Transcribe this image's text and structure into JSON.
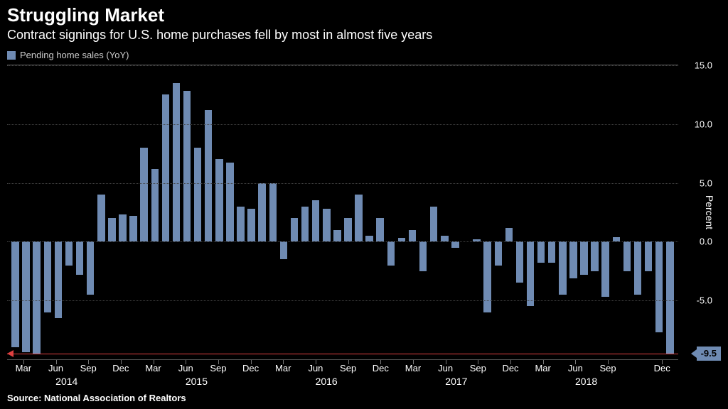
{
  "header": {
    "title": "Struggling Market",
    "subtitle": "Contract signings for U.S. home purchases fell by most in almost five years"
  },
  "legend": {
    "series_label": "Pending home sales (YoY)"
  },
  "chart": {
    "type": "bar",
    "background_color": "#000000",
    "bar_color": "#6f8bb3",
    "grid_color": "#444444",
    "axis_color": "#555555",
    "text_color": "#ffffff",
    "reference_line_color": "#e04040",
    "callout_bg": "#6f8bb3",
    "y_axis_title": "Percent",
    "ylim": [
      -10,
      15
    ],
    "yticks": [
      15.0,
      10.0,
      5.0,
      0.0,
      -5.0
    ],
    "ytick_labels": [
      "15.0",
      "10.0",
      "5.0",
      "0.0",
      "-5.0"
    ],
    "callout_value": "-9.5",
    "reference_value": -9.5,
    "values": [
      -9.0,
      -9.4,
      -9.5,
      -6.0,
      -6.5,
      -2.0,
      -2.8,
      -4.5,
      4.0,
      2.0,
      2.3,
      2.2,
      8.0,
      6.2,
      12.5,
      13.5,
      12.8,
      8.0,
      11.2,
      7.0,
      6.7,
      3.0,
      2.8,
      5.0,
      5.0,
      -1.5,
      2.0,
      3.0,
      3.5,
      2.8,
      1.0,
      2.0,
      4.0,
      0.5,
      2.0,
      -2.0,
      0.3,
      1.0,
      -2.5,
      3.0,
      0.5,
      -0.5,
      0.0,
      0.2,
      -6.0,
      -2.0,
      1.2,
      -3.5,
      -5.5,
      -1.8,
      -1.8,
      -4.5,
      -3.1,
      -2.8,
      -2.5,
      -4.7,
      0.4,
      -2.5,
      -4.5,
      -2.5,
      -7.7,
      -9.5
    ],
    "x_months": [
      {
        "pos_idx": 1,
        "label": "Mar"
      },
      {
        "pos_idx": 4,
        "label": "Jun"
      },
      {
        "pos_idx": 7,
        "label": "Sep"
      },
      {
        "pos_idx": 10,
        "label": "Dec"
      },
      {
        "pos_idx": 13,
        "label": "Mar"
      },
      {
        "pos_idx": 16,
        "label": "Jun"
      },
      {
        "pos_idx": 19,
        "label": "Sep"
      },
      {
        "pos_idx": 22,
        "label": "Dec"
      },
      {
        "pos_idx": 25,
        "label": "Mar"
      },
      {
        "pos_idx": 28,
        "label": "Jun"
      },
      {
        "pos_idx": 31,
        "label": "Sep"
      },
      {
        "pos_idx": 34,
        "label": "Dec"
      },
      {
        "pos_idx": 37,
        "label": "Mar"
      },
      {
        "pos_idx": 40,
        "label": "Jun"
      },
      {
        "pos_idx": 43,
        "label": "Sep"
      },
      {
        "pos_idx": 46,
        "label": "Dec"
      },
      {
        "pos_idx": 49,
        "label": "Mar"
      },
      {
        "pos_idx": 52,
        "label": "Jun"
      },
      {
        "pos_idx": 55,
        "label": "Sep"
      },
      {
        "pos_idx": 60,
        "label": "Dec"
      }
    ],
    "x_years": [
      {
        "pos_idx": 5,
        "label": "2014"
      },
      {
        "pos_idx": 17,
        "label": "2015"
      },
      {
        "pos_idx": 29,
        "label": "2016"
      },
      {
        "pos_idx": 41,
        "label": "2017"
      },
      {
        "pos_idx": 53,
        "label": "2018"
      }
    ]
  },
  "footer": {
    "source": "Source:  National Association of Realtors"
  }
}
